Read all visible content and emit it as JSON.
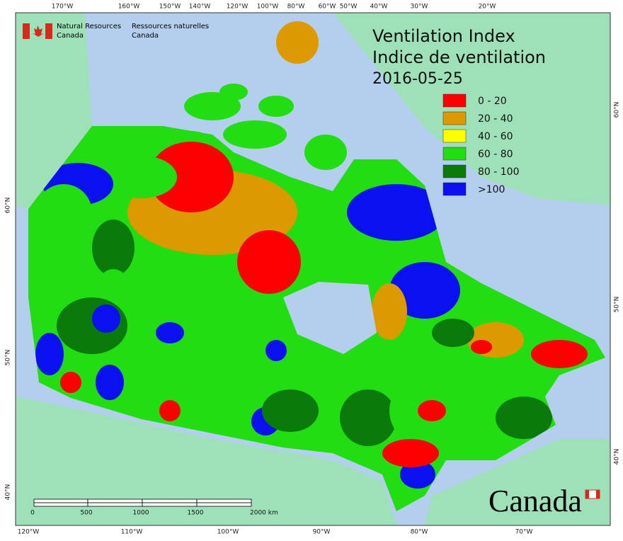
{
  "header": {
    "agency_en": [
      "Natural Resources",
      "Canada"
    ],
    "agency_fr": [
      "Ressources naturelles",
      "Canada"
    ]
  },
  "title": {
    "lines": [
      "Ventilation Index",
      "Indice de ventilation",
      "2016-05-25"
    ]
  },
  "legend": {
    "items": [
      {
        "label": "0 - 20",
        "color": "#ff0000"
      },
      {
        "label": "20 - 40",
        "color": "#dc9a00"
      },
      {
        "label": "40 - 60",
        "color": "#ffff00"
      },
      {
        "label": "60 - 80",
        "color": "#22dd11"
      },
      {
        "label": "80 - 100",
        "color": "#0a7a0a"
      },
      {
        "label": ">100",
        "color": "#0a10f0"
      }
    ]
  },
  "graticule": {
    "top": [
      "170°W",
      "160°W",
      "150°W",
      "140°W",
      "120°W",
      "100°W",
      "80°W",
      "60°W",
      "50°W",
      "40°W",
      "30°W",
      "20°W"
    ],
    "bottom": [
      "120°W",
      "110°W",
      "100°W",
      "90°W",
      "80°W",
      "70°W"
    ],
    "left": [
      "60°N",
      "50°N",
      "40°N"
    ],
    "right": [
      "60°N",
      "50°N",
      "40°N"
    ]
  },
  "scale_bar": {
    "labels": [
      "0",
      "500",
      "1000",
      "1500",
      "2000 km"
    ]
  },
  "wordmark": "Canada"
}
